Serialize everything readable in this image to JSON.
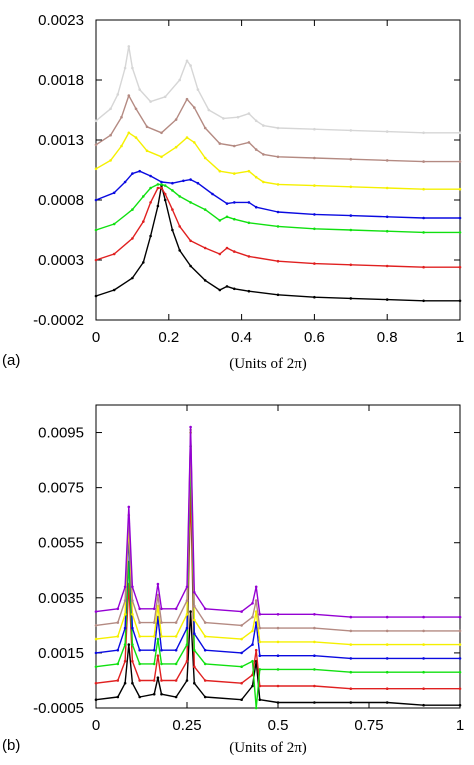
{
  "chart_data": [
    {
      "type": "line",
      "panel_label": "(a)",
      "xlabel": "(Units of 2π)",
      "ylabel": "",
      "title": "",
      "xlim": [
        0,
        1
      ],
      "ylim": [
        -0.0002,
        0.0023
      ],
      "xticks": [
        "0",
        "0.2",
        "0.4",
        "0.6",
        "0.8",
        "1"
      ],
      "yticks": [
        "-0.0002",
        "0.0003",
        "0.0008",
        "0.0013",
        "0.0018",
        "0.0023"
      ],
      "grid": false,
      "legend": "none",
      "series": [
        {
          "color": "#000000",
          "x": [
            0,
            0.05,
            0.1,
            0.13,
            0.15,
            0.17,
            0.18,
            0.19,
            0.21,
            0.23,
            0.26,
            0.3,
            0.34,
            0.36,
            0.38,
            0.42,
            0.5,
            0.6,
            0.7,
            0.8,
            0.9,
            1.0
          ],
          "y": [
            0.0,
            5e-05,
            0.00015,
            0.00028,
            0.0005,
            0.00075,
            0.00092,
            0.0008,
            0.00055,
            0.00038,
            0.00025,
            0.00013,
            5e-05,
            8e-05,
            6e-05,
            4e-05,
            1e-05,
            -1e-05,
            -2e-05,
            -3e-05,
            -4e-05,
            -4e-05
          ]
        },
        {
          "color": "#e02020",
          "x": [
            0,
            0.05,
            0.1,
            0.13,
            0.15,
            0.17,
            0.18,
            0.19,
            0.21,
            0.23,
            0.26,
            0.3,
            0.34,
            0.36,
            0.38,
            0.42,
            0.5,
            0.6,
            0.7,
            0.8,
            0.9,
            1.0
          ],
          "y": [
            0.0003,
            0.00035,
            0.00048,
            0.00062,
            0.00078,
            0.0009,
            0.0009,
            0.00085,
            0.00072,
            0.00058,
            0.00046,
            0.0004,
            0.00035,
            0.0004,
            0.00037,
            0.00033,
            0.00029,
            0.00027,
            0.00026,
            0.00025,
            0.00024,
            0.00024
          ]
        },
        {
          "color": "#10e010",
          "x": [
            0,
            0.05,
            0.1,
            0.13,
            0.15,
            0.17,
            0.18,
            0.19,
            0.21,
            0.23,
            0.26,
            0.3,
            0.34,
            0.36,
            0.38,
            0.42,
            0.5,
            0.6,
            0.7,
            0.8,
            0.9,
            1.0
          ],
          "y": [
            0.00055,
            0.0006,
            0.00072,
            0.00083,
            0.0009,
            0.00093,
            0.00093,
            0.00092,
            0.00088,
            0.00083,
            0.00078,
            0.00072,
            0.00063,
            0.00066,
            0.00064,
            0.00061,
            0.00058,
            0.00056,
            0.00055,
            0.00054,
            0.00053,
            0.00053
          ]
        },
        {
          "color": "#0a0ae0",
          "x": [
            0,
            0.05,
            0.08,
            0.1,
            0.12,
            0.15,
            0.18,
            0.21,
            0.24,
            0.26,
            0.28,
            0.32,
            0.36,
            0.38,
            0.42,
            0.44,
            0.5,
            0.6,
            0.7,
            0.8,
            0.9,
            1.0
          ],
          "y": [
            0.0008,
            0.00086,
            0.00095,
            0.00102,
            0.00104,
            0.001,
            0.00095,
            0.00094,
            0.00096,
            0.00097,
            0.00094,
            0.00085,
            0.00077,
            0.00078,
            0.00078,
            0.00074,
            0.0007,
            0.00068,
            0.00067,
            0.00066,
            0.00065,
            0.00065
          ]
        },
        {
          "color": "#f5f000",
          "x": [
            0,
            0.04,
            0.07,
            0.09,
            0.11,
            0.14,
            0.18,
            0.22,
            0.25,
            0.27,
            0.3,
            0.34,
            0.38,
            0.42,
            0.44,
            0.46,
            0.5,
            0.6,
            0.7,
            0.8,
            0.9,
            1.0
          ],
          "y": [
            0.00106,
            0.00113,
            0.00125,
            0.00136,
            0.00132,
            0.00121,
            0.00116,
            0.00124,
            0.00132,
            0.00128,
            0.00115,
            0.00104,
            0.00102,
            0.00104,
            0.00099,
            0.00095,
            0.00093,
            0.00092,
            0.00091,
            0.0009,
            0.00089,
            0.00089
          ]
        },
        {
          "color": "#b48a82",
          "x": [
            0,
            0.04,
            0.07,
            0.09,
            0.11,
            0.14,
            0.18,
            0.22,
            0.25,
            0.27,
            0.3,
            0.34,
            0.38,
            0.42,
            0.44,
            0.46,
            0.5,
            0.6,
            0.7,
            0.8,
            0.9,
            1.0
          ],
          "y": [
            0.00126,
            0.00134,
            0.00149,
            0.00167,
            0.00156,
            0.00141,
            0.00136,
            0.00147,
            0.00164,
            0.00157,
            0.0014,
            0.00127,
            0.00125,
            0.00128,
            0.00122,
            0.00118,
            0.00116,
            0.00115,
            0.00114,
            0.00113,
            0.00112,
            0.00112
          ]
        },
        {
          "color": "#d6d6d6",
          "x": [
            0,
            0.04,
            0.06,
            0.08,
            0.09,
            0.1,
            0.12,
            0.15,
            0.19,
            0.23,
            0.25,
            0.26,
            0.28,
            0.31,
            0.35,
            0.39,
            0.42,
            0.44,
            0.46,
            0.5,
            0.6,
            0.7,
            0.8,
            0.9,
            1.0
          ],
          "y": [
            0.00146,
            0.00156,
            0.00168,
            0.0019,
            0.00208,
            0.0019,
            0.00172,
            0.00162,
            0.00166,
            0.0018,
            0.00196,
            0.00192,
            0.00172,
            0.00155,
            0.00148,
            0.00149,
            0.00152,
            0.00146,
            0.00142,
            0.0014,
            0.00139,
            0.00138,
            0.00137,
            0.00136,
            0.00136
          ]
        }
      ]
    },
    {
      "type": "line",
      "panel_label": "(b)",
      "xlabel": "(Units of 2π)",
      "ylabel": "",
      "title": "",
      "xlim": [
        0,
        1
      ],
      "ylim": [
        -0.0005,
        0.0105
      ],
      "xticks": [
        "0",
        "0.25",
        "0.5",
        "0.75",
        "1"
      ],
      "yticks": [
        "-0.0005",
        "0.0015",
        "0.0035",
        "0.0055",
        "0.0075",
        "0.0095"
      ],
      "grid": false,
      "legend": "none",
      "series": [
        {
          "color": "#000000",
          "x": [
            0,
            0.06,
            0.08,
            0.09,
            0.1,
            0.12,
            0.16,
            0.17,
            0.18,
            0.22,
            0.25,
            0.26,
            0.27,
            0.3,
            0.4,
            0.43,
            0.44,
            0.45,
            0.5,
            0.6,
            0.7,
            0.8,
            0.9,
            1.0
          ],
          "y": [
            -0.0002,
            -0.0001,
            0.0004,
            0.0018,
            0.0004,
            -0.0001,
            0.0,
            0.0006,
            0.0,
            -0.0001,
            0.0005,
            0.003,
            0.0004,
            -0.0001,
            -0.0002,
            0.0003,
            0.0012,
            -0.0002,
            -0.0003,
            -0.0003,
            -0.0003,
            -0.0003,
            -0.0004,
            -0.0004
          ]
        },
        {
          "color": "#e02020",
          "x": [
            0,
            0.06,
            0.08,
            0.09,
            0.1,
            0.12,
            0.16,
            0.17,
            0.18,
            0.22,
            0.25,
            0.26,
            0.27,
            0.3,
            0.4,
            0.43,
            0.44,
            0.45,
            0.5,
            0.6,
            0.7,
            0.8,
            0.9,
            1.0
          ],
          "y": [
            0.0004,
            0.0005,
            0.0012,
            0.004,
            0.0012,
            0.0005,
            0.0005,
            0.0014,
            0.0005,
            0.0005,
            0.0012,
            0.0075,
            0.001,
            0.0005,
            0.0004,
            0.0007,
            0.0016,
            0.0003,
            0.0003,
            0.0003,
            0.0002,
            0.0002,
            0.0002,
            0.0002
          ]
        },
        {
          "color": "#10e010",
          "x": [
            0,
            0.06,
            0.08,
            0.09,
            0.1,
            0.12,
            0.16,
            0.17,
            0.18,
            0.22,
            0.25,
            0.26,
            0.27,
            0.3,
            0.4,
            0.43,
            0.44,
            0.45,
            0.5,
            0.6,
            0.7,
            0.8,
            0.9,
            1.0
          ],
          "y": [
            0.001,
            0.0011,
            0.0018,
            0.0048,
            0.0018,
            0.0011,
            0.0011,
            0.002,
            0.0011,
            0.0011,
            0.0018,
            0.009,
            0.0016,
            0.0011,
            0.001,
            0.0012,
            -0.0005,
            0.0009,
            0.0009,
            0.0009,
            0.0008,
            0.0008,
            0.0008,
            0.0008
          ]
        },
        {
          "color": "#0a0ae0",
          "x": [
            0,
            0.06,
            0.08,
            0.09,
            0.1,
            0.12,
            0.16,
            0.17,
            0.18,
            0.22,
            0.25,
            0.26,
            0.27,
            0.3,
            0.4,
            0.43,
            0.44,
            0.45,
            0.5,
            0.6,
            0.7,
            0.8,
            0.9,
            1.0
          ],
          "y": [
            0.0015,
            0.0016,
            0.0024,
            0.0058,
            0.0024,
            0.0016,
            0.0016,
            0.0028,
            0.0016,
            0.0016,
            0.0024,
            0.0095,
            0.0022,
            0.0016,
            0.0015,
            0.0018,
            0.0026,
            0.0014,
            0.0014,
            0.0014,
            0.0013,
            0.0013,
            0.0013,
            0.0013
          ]
        },
        {
          "color": "#f5f000",
          "x": [
            0,
            0.06,
            0.08,
            0.09,
            0.1,
            0.12,
            0.16,
            0.17,
            0.18,
            0.22,
            0.25,
            0.26,
            0.27,
            0.3,
            0.4,
            0.43,
            0.44,
            0.45,
            0.5,
            0.6,
            0.7,
            0.8,
            0.9,
            1.0
          ],
          "y": [
            0.002,
            0.0021,
            0.0029,
            0.0062,
            0.0029,
            0.0021,
            0.0021,
            0.0032,
            0.0021,
            0.0021,
            0.0029,
            0.0095,
            0.0027,
            0.0021,
            0.002,
            0.0023,
            0.003,
            0.0019,
            0.0019,
            0.0019,
            0.0018,
            0.0018,
            0.0018,
            0.0018
          ]
        },
        {
          "color": "#b48a82",
          "x": [
            0,
            0.06,
            0.08,
            0.09,
            0.1,
            0.12,
            0.16,
            0.17,
            0.18,
            0.22,
            0.25,
            0.26,
            0.27,
            0.3,
            0.4,
            0.43,
            0.44,
            0.45,
            0.5,
            0.6,
            0.7,
            0.8,
            0.9,
            1.0
          ],
          "y": [
            0.0025,
            0.0026,
            0.0034,
            0.0065,
            0.0034,
            0.0026,
            0.0026,
            0.0036,
            0.0026,
            0.0026,
            0.0034,
            0.0096,
            0.0032,
            0.0026,
            0.0025,
            0.0028,
            0.0034,
            0.0024,
            0.0024,
            0.0024,
            0.0023,
            0.0023,
            0.0023,
            0.0023
          ]
        },
        {
          "color": "#9400d3",
          "x": [
            0,
            0.06,
            0.08,
            0.09,
            0.1,
            0.12,
            0.16,
            0.17,
            0.18,
            0.22,
            0.25,
            0.26,
            0.27,
            0.3,
            0.4,
            0.43,
            0.44,
            0.45,
            0.5,
            0.6,
            0.7,
            0.8,
            0.9,
            1.0
          ],
          "y": [
            0.003,
            0.0031,
            0.0039,
            0.0068,
            0.0039,
            0.0031,
            0.0031,
            0.004,
            0.0031,
            0.0031,
            0.0039,
            0.0097,
            0.0037,
            0.0031,
            0.003,
            0.0033,
            0.0039,
            0.0029,
            0.0029,
            0.0029,
            0.0028,
            0.0028,
            0.0028,
            0.0028
          ]
        }
      ]
    }
  ]
}
